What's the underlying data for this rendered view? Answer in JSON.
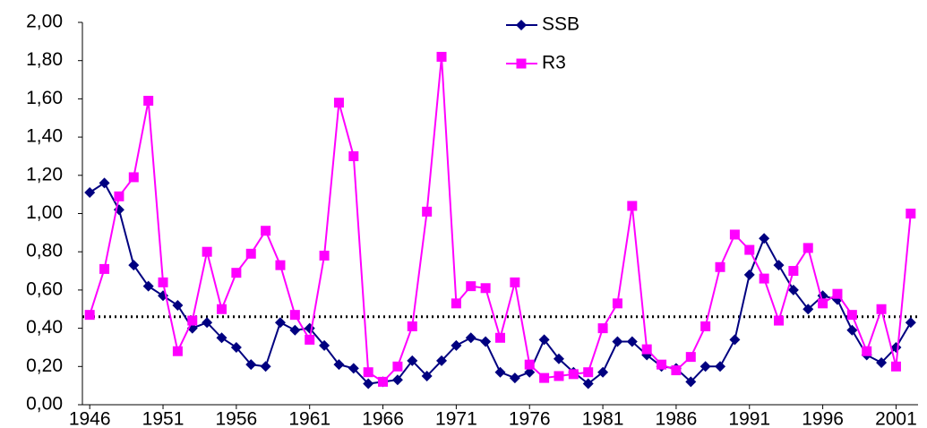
{
  "chart_data": {
    "type": "line",
    "x": [
      1946,
      1947,
      1948,
      1949,
      1950,
      1951,
      1952,
      1953,
      1954,
      1955,
      1956,
      1957,
      1958,
      1959,
      1960,
      1961,
      1962,
      1963,
      1964,
      1965,
      1966,
      1967,
      1968,
      1969,
      1970,
      1971,
      1972,
      1973,
      1974,
      1975,
      1976,
      1977,
      1978,
      1979,
      1980,
      1981,
      1982,
      1983,
      1984,
      1985,
      1986,
      1987,
      1988,
      1989,
      1990,
      1991,
      1992,
      1993,
      1994,
      1995,
      1996,
      1997,
      1998,
      1999,
      2000,
      2001,
      2002
    ],
    "series": [
      {
        "name": "SSB",
        "color": "#000080",
        "marker": "diamond",
        "values": [
          1.11,
          1.16,
          1.02,
          0.73,
          0.62,
          0.57,
          0.52,
          0.4,
          0.43,
          0.35,
          0.3,
          0.21,
          0.2,
          0.43,
          0.39,
          0.4,
          0.31,
          0.21,
          0.19,
          0.11,
          0.12,
          0.13,
          0.23,
          0.15,
          0.23,
          0.31,
          0.35,
          0.33,
          0.17,
          0.14,
          0.17,
          0.34,
          0.24,
          0.17,
          0.11,
          0.17,
          0.33,
          0.33,
          0.26,
          0.2,
          0.19,
          0.12,
          0.2,
          0.2,
          0.34,
          0.68,
          0.87,
          0.73,
          0.6,
          0.5,
          0.57,
          0.55,
          0.39,
          0.26,
          0.22,
          0.3,
          0.43
        ]
      },
      {
        "name": "R3",
        "color": "#ff00ff",
        "marker": "square",
        "values": [
          0.47,
          0.71,
          1.09,
          1.19,
          1.59,
          0.64,
          0.28,
          0.44,
          0.8,
          0.5,
          0.69,
          0.79,
          0.91,
          0.73,
          0.47,
          0.34,
          0.78,
          1.58,
          1.3,
          0.17,
          0.12,
          0.2,
          0.41,
          1.01,
          1.82,
          0.53,
          0.62,
          0.61,
          0.35,
          0.64,
          0.21,
          0.14,
          0.15,
          0.16,
          0.17,
          0.4,
          0.53,
          1.04,
          0.29,
          0.21,
          0.18,
          0.25,
          0.41,
          0.72,
          0.89,
          0.81,
          0.66,
          0.44,
          0.7,
          0.82,
          0.53,
          0.58,
          0.47,
          0.28,
          0.5,
          0.2,
          1.0
        ]
      }
    ],
    "reference_line": 0.46,
    "xlim": [
      1945.5,
      2002.5
    ],
    "xticks": [
      1946,
      1951,
      1956,
      1961,
      1966,
      1971,
      1976,
      1981,
      1986,
      1991,
      1996,
      2001
    ],
    "ylim": [
      0,
      2
    ],
    "yticks": [
      {
        "value": 0,
        "label": "0,00"
      },
      {
        "value": 0.2,
        "label": "0,20"
      },
      {
        "value": 0.4,
        "label": "0,40"
      },
      {
        "value": 0.6,
        "label": "0,60"
      },
      {
        "value": 0.8,
        "label": "0,80"
      },
      {
        "value": 1,
        "label": "1,00"
      },
      {
        "value": 1.2,
        "label": "1,20"
      },
      {
        "value": 1.4,
        "label": "1,40"
      },
      {
        "value": 1.6,
        "label": "1,60"
      },
      {
        "value": 1.8,
        "label": "1,80"
      },
      {
        "value": 2,
        "label": "2,00"
      }
    ],
    "grid": false,
    "legend": "top"
  }
}
